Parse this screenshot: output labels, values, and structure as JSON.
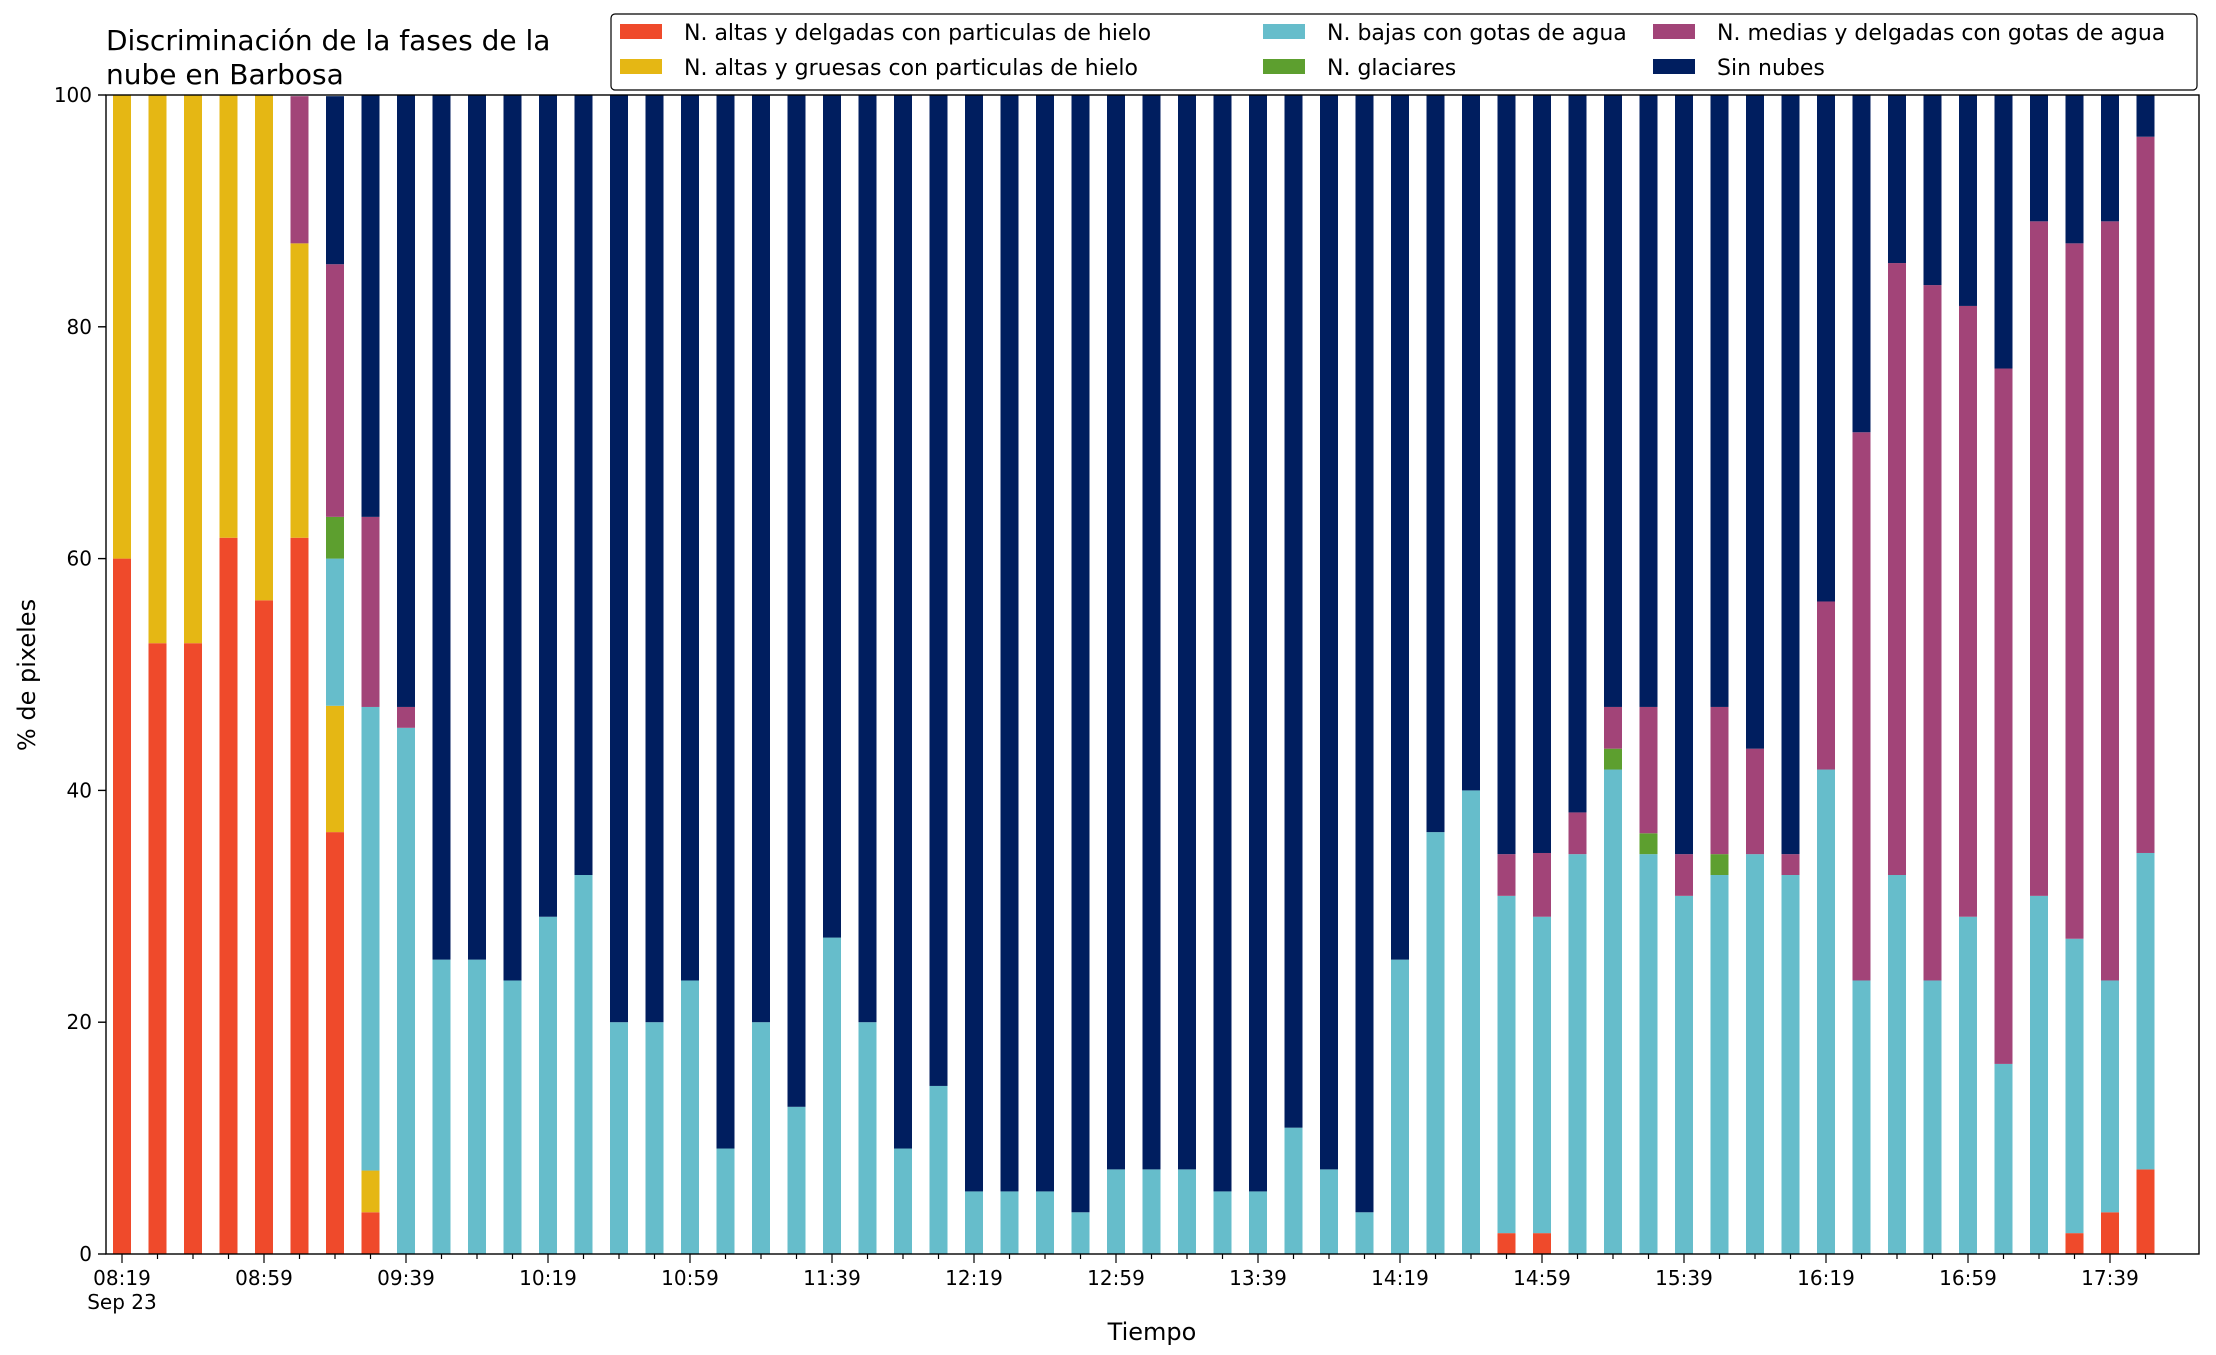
{
  "chart_data": {
    "type": "bar",
    "stacked": true,
    "title_lines": [
      "Discriminación de la fases de la",
      "nube en Barbosa"
    ],
    "xlabel": "Tiempo",
    "ylabel": "% de pixeles",
    "ylim": [
      0,
      100
    ],
    "yticks": [
      "0",
      "20",
      "40",
      "60",
      "80",
      "100"
    ],
    "x_tick_labels": [
      "08:19",
      "08:59",
      "09:39",
      "10:19",
      "10:59",
      "11:39",
      "12:19",
      "12:59",
      "13:39",
      "14:19",
      "14:59",
      "15:39",
      "16:19",
      "16:59",
      "17:39"
    ],
    "x_date_label": "Sep 23",
    "legend_position": "top-right",
    "grid": false,
    "categories": [
      "08:19",
      "08:29",
      "08:39",
      "08:49",
      "08:59",
      "09:09",
      "09:19",
      "09:29",
      "09:39",
      "09:49",
      "09:59",
      "10:09",
      "10:19",
      "10:29",
      "10:39",
      "10:49",
      "10:59",
      "11:09",
      "11:19",
      "11:29",
      "11:39",
      "11:49",
      "11:59",
      "12:09",
      "12:19",
      "12:29",
      "12:39",
      "12:49",
      "12:59",
      "13:09",
      "13:19",
      "13:29",
      "13:39",
      "13:49",
      "13:59",
      "14:09",
      "14:19",
      "14:29",
      "14:39",
      "14:49",
      "14:59",
      "15:09",
      "15:19",
      "15:29",
      "15:39",
      "15:49",
      "15:59",
      "16:09",
      "16:19",
      "16:29",
      "16:39",
      "16:49",
      "16:59",
      "17:09",
      "17:19",
      "17:29",
      "17:39",
      "17:49"
    ],
    "series": [
      {
        "name": "N. altas y delgadas con particulas de hielo",
        "color": "#ef4a2b",
        "values": [
          60,
          52.7,
          52.7,
          61.8,
          56.4,
          61.8,
          36.4,
          3.6,
          0,
          0,
          0,
          0,
          0,
          0,
          0,
          0,
          0,
          0,
          0,
          0,
          0,
          0,
          0,
          0,
          0,
          0,
          0,
          0,
          0,
          0,
          0,
          0,
          0,
          0,
          0,
          0,
          0,
          0,
          0,
          1.8,
          1.8,
          0,
          0,
          0,
          0,
          0,
          0,
          0,
          0,
          0,
          0,
          0,
          0,
          0,
          0,
          1.8,
          3.6,
          7.3
        ]
      },
      {
        "name": "N. altas y gruesas con particulas de hielo",
        "color": "#e5b714",
        "values": [
          40,
          47.3,
          47.3,
          38.2,
          43.6,
          25.4,
          10.9,
          3.6,
          0,
          0,
          0,
          0,
          0,
          0,
          0,
          0,
          0,
          0,
          0,
          0,
          0,
          0,
          0,
          0,
          0,
          0,
          0,
          0,
          0,
          0,
          0,
          0,
          0,
          0,
          0,
          0,
          0,
          0,
          0,
          0,
          0,
          0,
          0,
          0,
          0,
          0,
          0,
          0,
          0,
          0,
          0,
          0,
          0,
          0,
          0,
          0,
          0,
          0
        ]
      },
      {
        "name": "N. bajas con gotas de agua",
        "color": "#66bdcb",
        "values": [
          0,
          0,
          0,
          0,
          0,
          0,
          12.7,
          40,
          45.4,
          25.4,
          25.4,
          23.6,
          29.1,
          32.7,
          20,
          20,
          23.6,
          9.1,
          20,
          12.7,
          27.3,
          20,
          9.1,
          14.5,
          5.4,
          5.4,
          5.4,
          3.6,
          7.3,
          7.3,
          7.3,
          5.4,
          5.4,
          10.9,
          7.3,
          3.6,
          25.4,
          36.4,
          40,
          29.1,
          27.3,
          34.5,
          41.8,
          34.5,
          30.9,
          32.7,
          34.5,
          32.7,
          41.8,
          23.6,
          32.7,
          23.6,
          29.1,
          16.4,
          30.9,
          25.4,
          20,
          27.3
        ]
      },
      {
        "name": "N. glaciares",
        "color": "#5d9f2f",
        "values": [
          0,
          0,
          0,
          0,
          0,
          0,
          3.6,
          0,
          0,
          0,
          0,
          0,
          0,
          0,
          0,
          0,
          0,
          0,
          0,
          0,
          0,
          0,
          0,
          0,
          0,
          0,
          0,
          0,
          0,
          0,
          0,
          0,
          0,
          0,
          0,
          0,
          0,
          0,
          0,
          0,
          0,
          0,
          1.8,
          1.8,
          0,
          1.8,
          0,
          0,
          0,
          0,
          0,
          0,
          0,
          0,
          0,
          0,
          0,
          0
        ]
      },
      {
        "name": "N. medias y delgadas con gotas de agua",
        "color": "#a24478",
        "values": [
          0,
          0,
          0,
          0,
          0,
          12.7,
          21.8,
          16.4,
          1.8,
          0,
          0,
          0,
          0,
          0,
          0,
          0,
          0,
          0,
          0,
          0,
          0,
          0,
          0,
          0,
          0,
          0,
          0,
          0,
          0,
          0,
          0,
          0,
          0,
          0,
          0,
          0,
          0,
          0,
          0,
          3.6,
          5.5,
          3.6,
          3.6,
          10.9,
          3.6,
          12.7,
          9.1,
          1.8,
          14.5,
          47.3,
          52.8,
          60,
          52.7,
          60,
          58.2,
          60,
          65.5,
          61.8
        ]
      },
      {
        "name": "Sin nubes",
        "color": "#001e5f",
        "values": [
          0,
          0,
          0,
          0,
          0,
          0,
          14.5,
          36.4,
          52.8,
          74.6,
          74.6,
          76.4,
          70.9,
          67.3,
          80,
          80,
          76.4,
          90.9,
          80,
          87.3,
          72.7,
          80,
          90.9,
          85.5,
          94.6,
          94.6,
          94.6,
          96.4,
          92.7,
          92.7,
          92.7,
          94.6,
          94.6,
          89.1,
          92.7,
          96.4,
          74.6,
          63.6,
          60,
          65.5,
          65.4,
          61.9,
          52.8,
          52.8,
          65.5,
          52.8,
          56.4,
          65.5,
          43.7,
          29.1,
          14.5,
          16.4,
          18.2,
          23.6,
          10.9,
          12.8,
          10.9,
          3.6
        ]
      }
    ]
  }
}
